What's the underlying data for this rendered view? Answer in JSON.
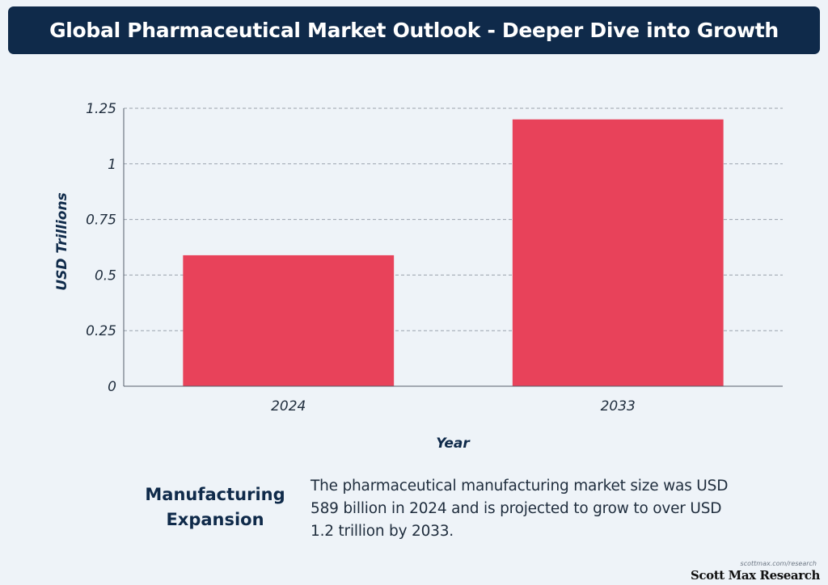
{
  "header": {
    "title": "Global Pharmaceutical Market Outlook - Deeper Dive into Growth"
  },
  "chart_data": {
    "type": "bar",
    "categories": [
      "2024",
      "2033"
    ],
    "values": [
      0.589,
      1.2
    ],
    "xlabel": "Year",
    "ylabel": "USD Trillions",
    "ylim": [
      0,
      1.25
    ],
    "yticks": [
      0,
      0.25,
      0.5,
      0.75,
      1,
      1.25
    ],
    "ytick_labels": [
      "0",
      "0.25",
      "0.5",
      "0.75",
      "1",
      "1.25"
    ],
    "grid": true,
    "bar_color": "#e8425a",
    "grid_color": "#9aa3ad",
    "axis_color": "#555f6b"
  },
  "caption": {
    "heading": "Manufacturing Expansion",
    "body": "The pharmaceutical manufacturing market size was USD 589 billion in 2024 and is projected to grow to over USD 1.2 trillion by 2033."
  },
  "brand": {
    "url": "scottmax.com/research",
    "name": "Scott Max Research"
  }
}
